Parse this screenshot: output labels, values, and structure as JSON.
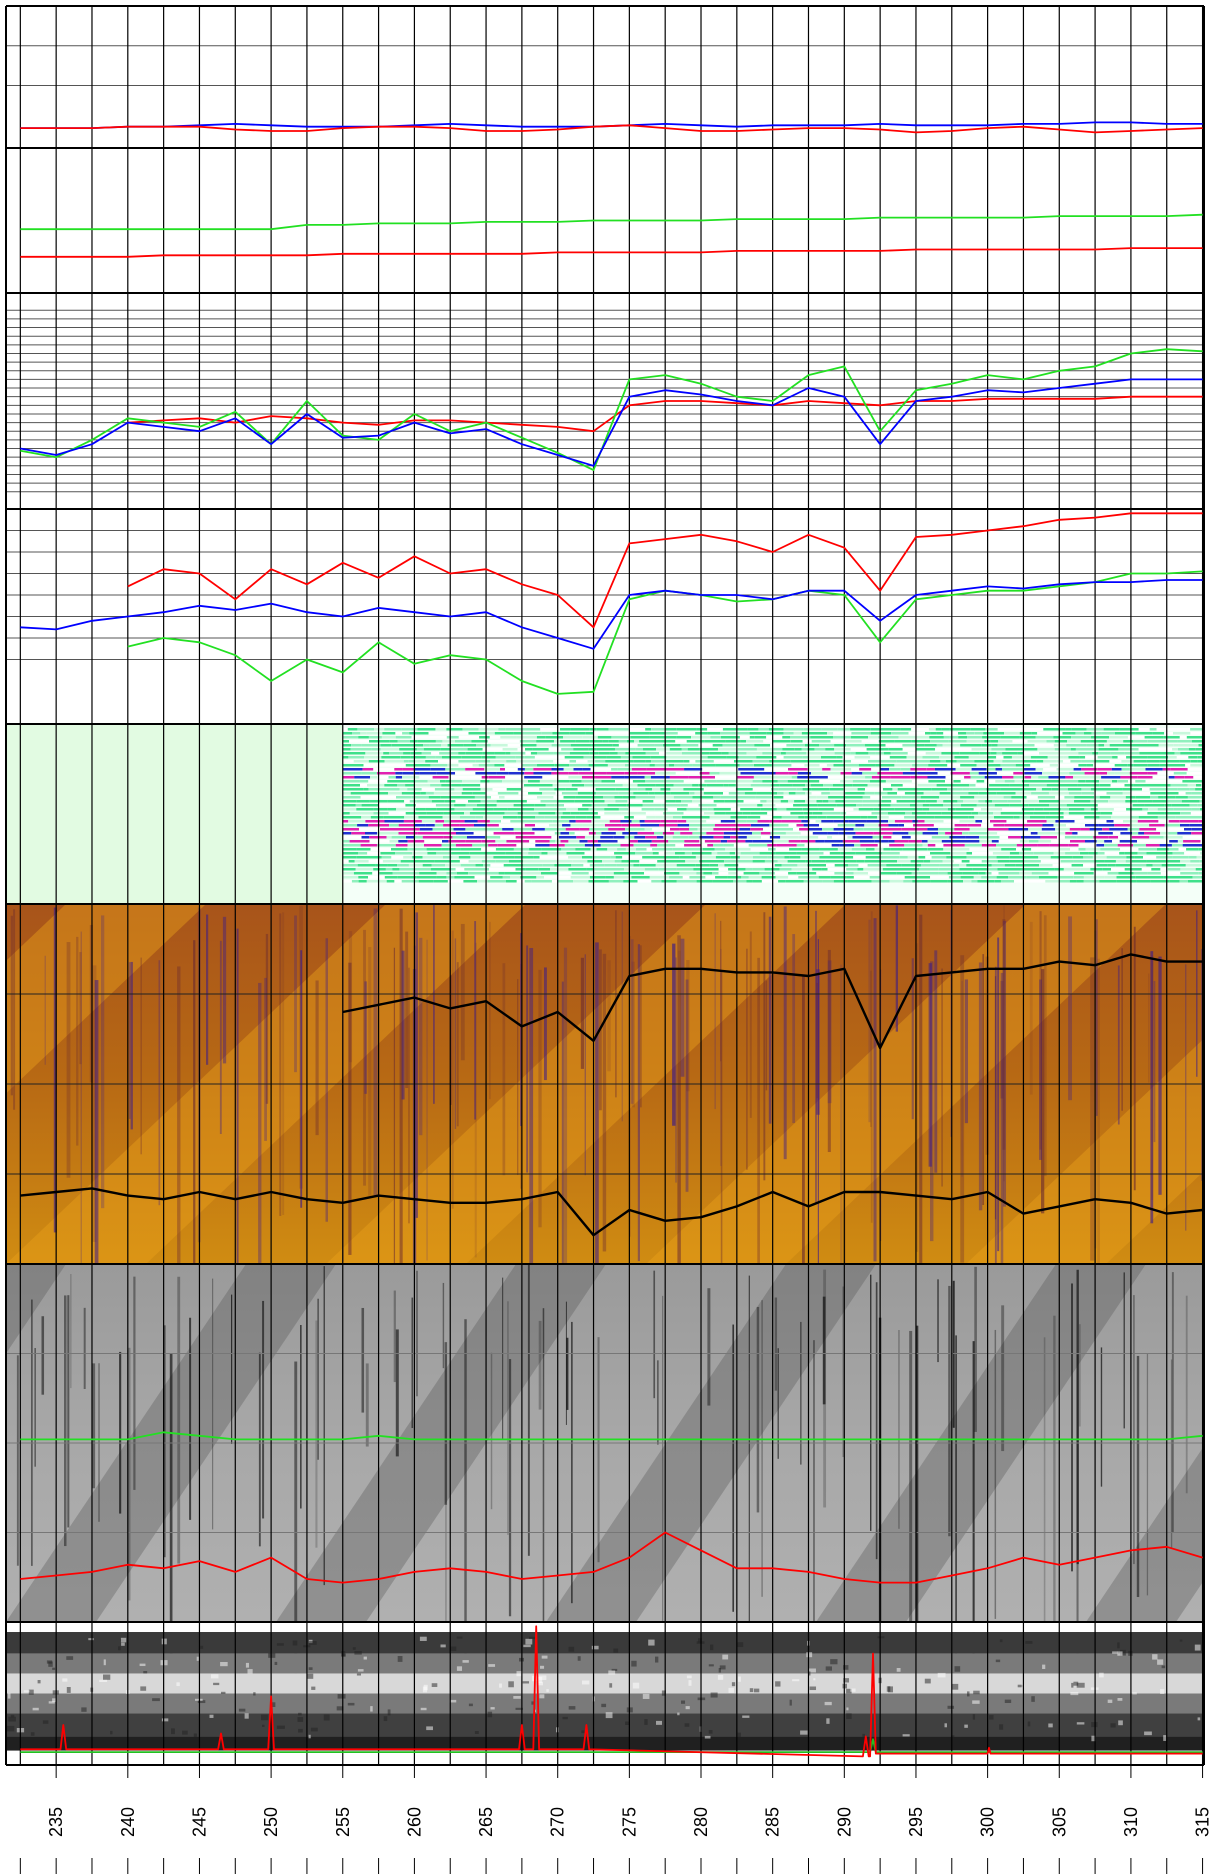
{
  "chart_data": {
    "type": "multi-panel",
    "xlim": [
      231.5,
      315.1
    ],
    "xticks": [
      235,
      240,
      245,
      250,
      255,
      260,
      265,
      270,
      275,
      280,
      285,
      290,
      295,
      300,
      305,
      310,
      315
    ],
    "xgrid": [
      232.5,
      235,
      237.5,
      240,
      242.5,
      245,
      247.5,
      250,
      252.5,
      255,
      257.5,
      260,
      262.5,
      265,
      267.5,
      270,
      272.5,
      275,
      277.5,
      280,
      282.5,
      285,
      287.5,
      290,
      292.5,
      295,
      297.5,
      300,
      302.5,
      305,
      307.5,
      310,
      312.5,
      315
    ],
    "panels": [
      {
        "type": "line",
        "ylim": [
          0,
          100
        ],
        "yticks": [
          44,
          72
        ],
        "x": [
          232.5,
          235,
          237.5,
          240,
          242.5,
          245,
          247.5,
          250,
          252.5,
          255,
          257.5,
          260,
          262.5,
          265,
          267.5,
          270,
          272.5,
          275,
          277.5,
          280,
          282.5,
          285,
          287.5,
          290,
          292.5,
          295,
          297.5,
          300,
          302.5,
          305,
          307.5,
          310,
          312.5,
          315
        ],
        "series": [
          {
            "color": "#0000ff",
            "values": [
              14,
              14,
              14,
              15,
              15,
              16,
              17,
              16,
              15,
              15,
              15,
              16,
              17,
              16,
              15,
              15,
              15,
              16,
              17,
              16,
              15,
              16,
              16,
              16,
              17,
              16,
              16,
              16,
              17,
              17,
              18,
              18,
              17,
              17
            ]
          },
          {
            "color": "#ff0000",
            "values": [
              14,
              14,
              14,
              15,
              15,
              15,
              13,
              12,
              12,
              14,
              15,
              15,
              14,
              12,
              12,
              13,
              15,
              16,
              14,
              12,
              12,
              13,
              14,
              14,
              13,
              11,
              12,
              14,
              15,
              13,
              11,
              12,
              13,
              14
            ]
          }
        ]
      },
      {
        "type": "line",
        "ylim": [
          0,
          100
        ],
        "x": [
          232.5,
          235,
          237.5,
          240,
          242.5,
          245,
          247.5,
          250,
          252.5,
          255,
          257.5,
          260,
          262.5,
          265,
          267.5,
          270,
          272.5,
          275,
          277.5,
          280,
          282.5,
          285,
          287.5,
          290,
          292.5,
          295,
          297.5,
          300,
          302.5,
          305,
          307.5,
          310,
          312.5,
          315
        ],
        "series": [
          {
            "color": "#22e022",
            "values": [
              44,
              44,
              44,
              44,
              44,
              44,
              44,
              44,
              47,
              47,
              48,
              48,
              48,
              49,
              49,
              49,
              50,
              50,
              50,
              50,
              51,
              51,
              51,
              51,
              52,
              52,
              52,
              52,
              52,
              53,
              53,
              53,
              53,
              54
            ]
          },
          {
            "color": "#ff0000",
            "values": [
              25,
              25,
              25,
              25,
              26,
              26,
              26,
              26,
              26,
              27,
              27,
              27,
              27,
              27,
              27,
              28,
              28,
              28,
              28,
              28,
              29,
              29,
              29,
              29,
              29,
              30,
              30,
              30,
              30,
              30,
              30,
              31,
              31,
              31
            ]
          }
        ]
      },
      {
        "type": "line",
        "ylim": [
          0,
          100
        ],
        "yticks": [
          8,
          12,
          16,
          20,
          24,
          28,
          32,
          36,
          40,
          44,
          48,
          52,
          56,
          60,
          64,
          68,
          72,
          76,
          80,
          84,
          88,
          92
        ],
        "x": [
          232.5,
          235,
          237.5,
          240,
          242.5,
          245,
          247.5,
          250,
          252.5,
          255,
          257.5,
          260,
          262.5,
          265,
          267.5,
          270,
          272.5,
          275,
          277.5,
          280,
          282.5,
          285,
          287.5,
          290,
          292.5,
          295,
          297.5,
          300,
          302.5,
          305,
          307.5,
          310,
          312.5,
          315
        ],
        "series": [
          {
            "color": "#ff0000",
            "values": [
              null,
              null,
              null,
              40,
              41,
              42,
              40,
              43,
              42,
              40,
              39,
              41,
              41,
              40,
              39,
              38,
              36,
              48,
              50,
              50,
              49,
              48,
              50,
              49,
              48,
              50,
              50,
              51,
              51,
              51,
              51,
              52,
              52,
              52
            ]
          },
          {
            "color": "#22e022",
            "values": [
              27,
              24,
              32,
              42,
              40,
              38,
              45,
              30,
              50,
              34,
              32,
              44,
              36,
              40,
              33,
              26,
              18,
              60,
              62,
              58,
              52,
              50,
              62,
              66,
              36,
              55,
              58,
              62,
              60,
              64,
              66,
              72,
              74,
              73
            ]
          },
          {
            "color": "#0000ff",
            "values": [
              28,
              25,
              30,
              40,
              38,
              36,
              42,
              30,
              44,
              33,
              34,
              40,
              35,
              37,
              30,
              25,
              20,
              52,
              55,
              53,
              50,
              48,
              56,
              52,
              30,
              50,
              52,
              55,
              54,
              56,
              58,
              60,
              60,
              60
            ]
          }
        ]
      },
      {
        "type": "line",
        "ylim": [
          0,
          100
        ],
        "yticks": [
          30,
          40,
          50,
          60,
          70,
          80,
          90
        ],
        "x": [
          232.5,
          235,
          237.5,
          240,
          242.5,
          245,
          247.5,
          250,
          252.5,
          255,
          257.5,
          260,
          262.5,
          265,
          267.5,
          270,
          272.5,
          275,
          277.5,
          280,
          282.5,
          285,
          287.5,
          290,
          292.5,
          295,
          297.5,
          300,
          302.5,
          305,
          307.5,
          310,
          312.5,
          315
        ],
        "series": [
          {
            "color": "#ff0000",
            "values": [
              null,
              null,
              null,
              64,
              72,
              70,
              58,
              72,
              65,
              75,
              68,
              78,
              70,
              72,
              65,
              60,
              45,
              84,
              86,
              88,
              85,
              80,
              88,
              82,
              62,
              87,
              88,
              90,
              92,
              95,
              96,
              98,
              98,
              98
            ]
          },
          {
            "color": "#22e022",
            "values": [
              null,
              null,
              null,
              36,
              40,
              38,
              32,
              20,
              30,
              24,
              38,
              28,
              32,
              30,
              20,
              14,
              15,
              58,
              62,
              60,
              57,
              58,
              62,
              60,
              38,
              58,
              60,
              62,
              62,
              64,
              66,
              70,
              70,
              71
            ]
          },
          {
            "color": "#0000ff",
            "values": [
              45,
              44,
              48,
              50,
              52,
              55,
              53,
              56,
              52,
              50,
              54,
              52,
              50,
              52,
              45,
              40,
              35,
              60,
              62,
              60,
              60,
              58,
              62,
              62,
              48,
              60,
              62,
              64,
              63,
              65,
              66,
              66,
              67,
              67
            ]
          }
        ]
      },
      {
        "type": "spectrogram",
        "xstart": 255
      },
      {
        "type": "heatmap",
        "ylim": [
          0,
          100
        ],
        "yticks": [
          25,
          50,
          75
        ],
        "x": [
          232.5,
          235,
          237.5,
          240,
          242.5,
          245,
          247.5,
          250,
          252.5,
          255,
          257.5,
          260,
          262.5,
          265,
          267.5,
          270,
          272.5,
          275,
          277.5,
          280,
          282.5,
          285,
          287.5,
          290,
          292.5,
          295,
          297.5,
          300,
          302.5,
          305,
          307.5,
          310,
          312.5,
          315
        ],
        "series": [
          {
            "color": "#000000",
            "values": [
              null,
              null,
              null,
              null,
              null,
              null,
              null,
              null,
              null,
              70,
              72,
              74,
              71,
              73,
              66,
              70,
              62,
              80,
              82,
              82,
              81,
              81,
              80,
              82,
              60,
              80,
              81,
              82,
              82,
              84,
              83,
              86,
              84,
              84
            ]
          },
          {
            "color": "#000000",
            "values": [
              19,
              20,
              21,
              19,
              18,
              20,
              18,
              20,
              18,
              17,
              19,
              18,
              17,
              17,
              18,
              20,
              8,
              15,
              12,
              13,
              16,
              20,
              16,
              20,
              20,
              19,
              18,
              20,
              14,
              16,
              18,
              17,
              14,
              15
            ]
          }
        ]
      },
      {
        "type": "grayscale",
        "ylim": [
          0,
          100
        ],
        "yticks": [
          25,
          50,
          75
        ],
        "x": [
          232.5,
          235,
          237.5,
          240,
          242.5,
          245,
          247.5,
          250,
          252.5,
          255,
          257.5,
          260,
          262.5,
          265,
          267.5,
          270,
          272.5,
          275,
          277.5,
          280,
          282.5,
          285,
          287.5,
          290,
          292.5,
          295,
          297.5,
          300,
          302.5,
          305,
          307.5,
          310,
          312.5,
          315
        ],
        "series": [
          {
            "color": "#22e022",
            "values": [
              51,
              51,
              51,
              51,
              53,
              52,
              51,
              51,
              51,
              51,
              52,
              51,
              51,
              51,
              51,
              51,
              51,
              51,
              51,
              51,
              51,
              51,
              51,
              51,
              51,
              51,
              51,
              51,
              51,
              51,
              51,
              51,
              51,
              52
            ]
          },
          {
            "color": "#ff0000",
            "values": [
              12,
              13,
              14,
              16,
              15,
              17,
              14,
              18,
              12,
              11,
              12,
              14,
              15,
              14,
              12,
              13,
              14,
              18,
              25,
              20,
              15,
              15,
              14,
              12,
              11,
              11,
              13,
              15,
              18,
              16,
              18,
              20,
              21,
              18
            ]
          }
        ]
      },
      {
        "type": "image-strip",
        "ylim": [
          0,
          100
        ],
        "x": [
          232.5,
          235.3,
          235.5,
          235.7,
          246.3,
          246.5,
          246.7,
          249.8,
          250,
          250.2,
          267.3,
          267.5,
          267.7,
          268.3,
          268.5,
          268.7,
          271.8,
          272,
          272.2,
          291.3,
          291.5,
          291.7,
          291.8,
          292,
          292.2,
          300,
          300.1,
          300.2,
          315
        ],
        "series": [
          {
            "color": "#22c022",
            "values": [
              9,
              9,
              9,
              9,
              9,
              9,
              9,
              9,
              9,
              9,
              9,
              9,
              9,
              9,
              9,
              9,
              9,
              9,
              9,
              9,
              9,
              9,
              9,
              18,
              9,
              9,
              9,
              9,
              9
            ]
          },
          {
            "color": "#ff0000",
            "values": [
              11,
              11,
              28,
              11,
              11,
              22,
              11,
              11,
              48,
              11,
              11,
              28,
              11,
              11,
              97,
              11,
              11,
              28,
              11,
              6,
              20,
              6,
              6,
              78,
              8,
              8,
              12,
              8,
              8
            ]
          }
        ]
      }
    ]
  }
}
